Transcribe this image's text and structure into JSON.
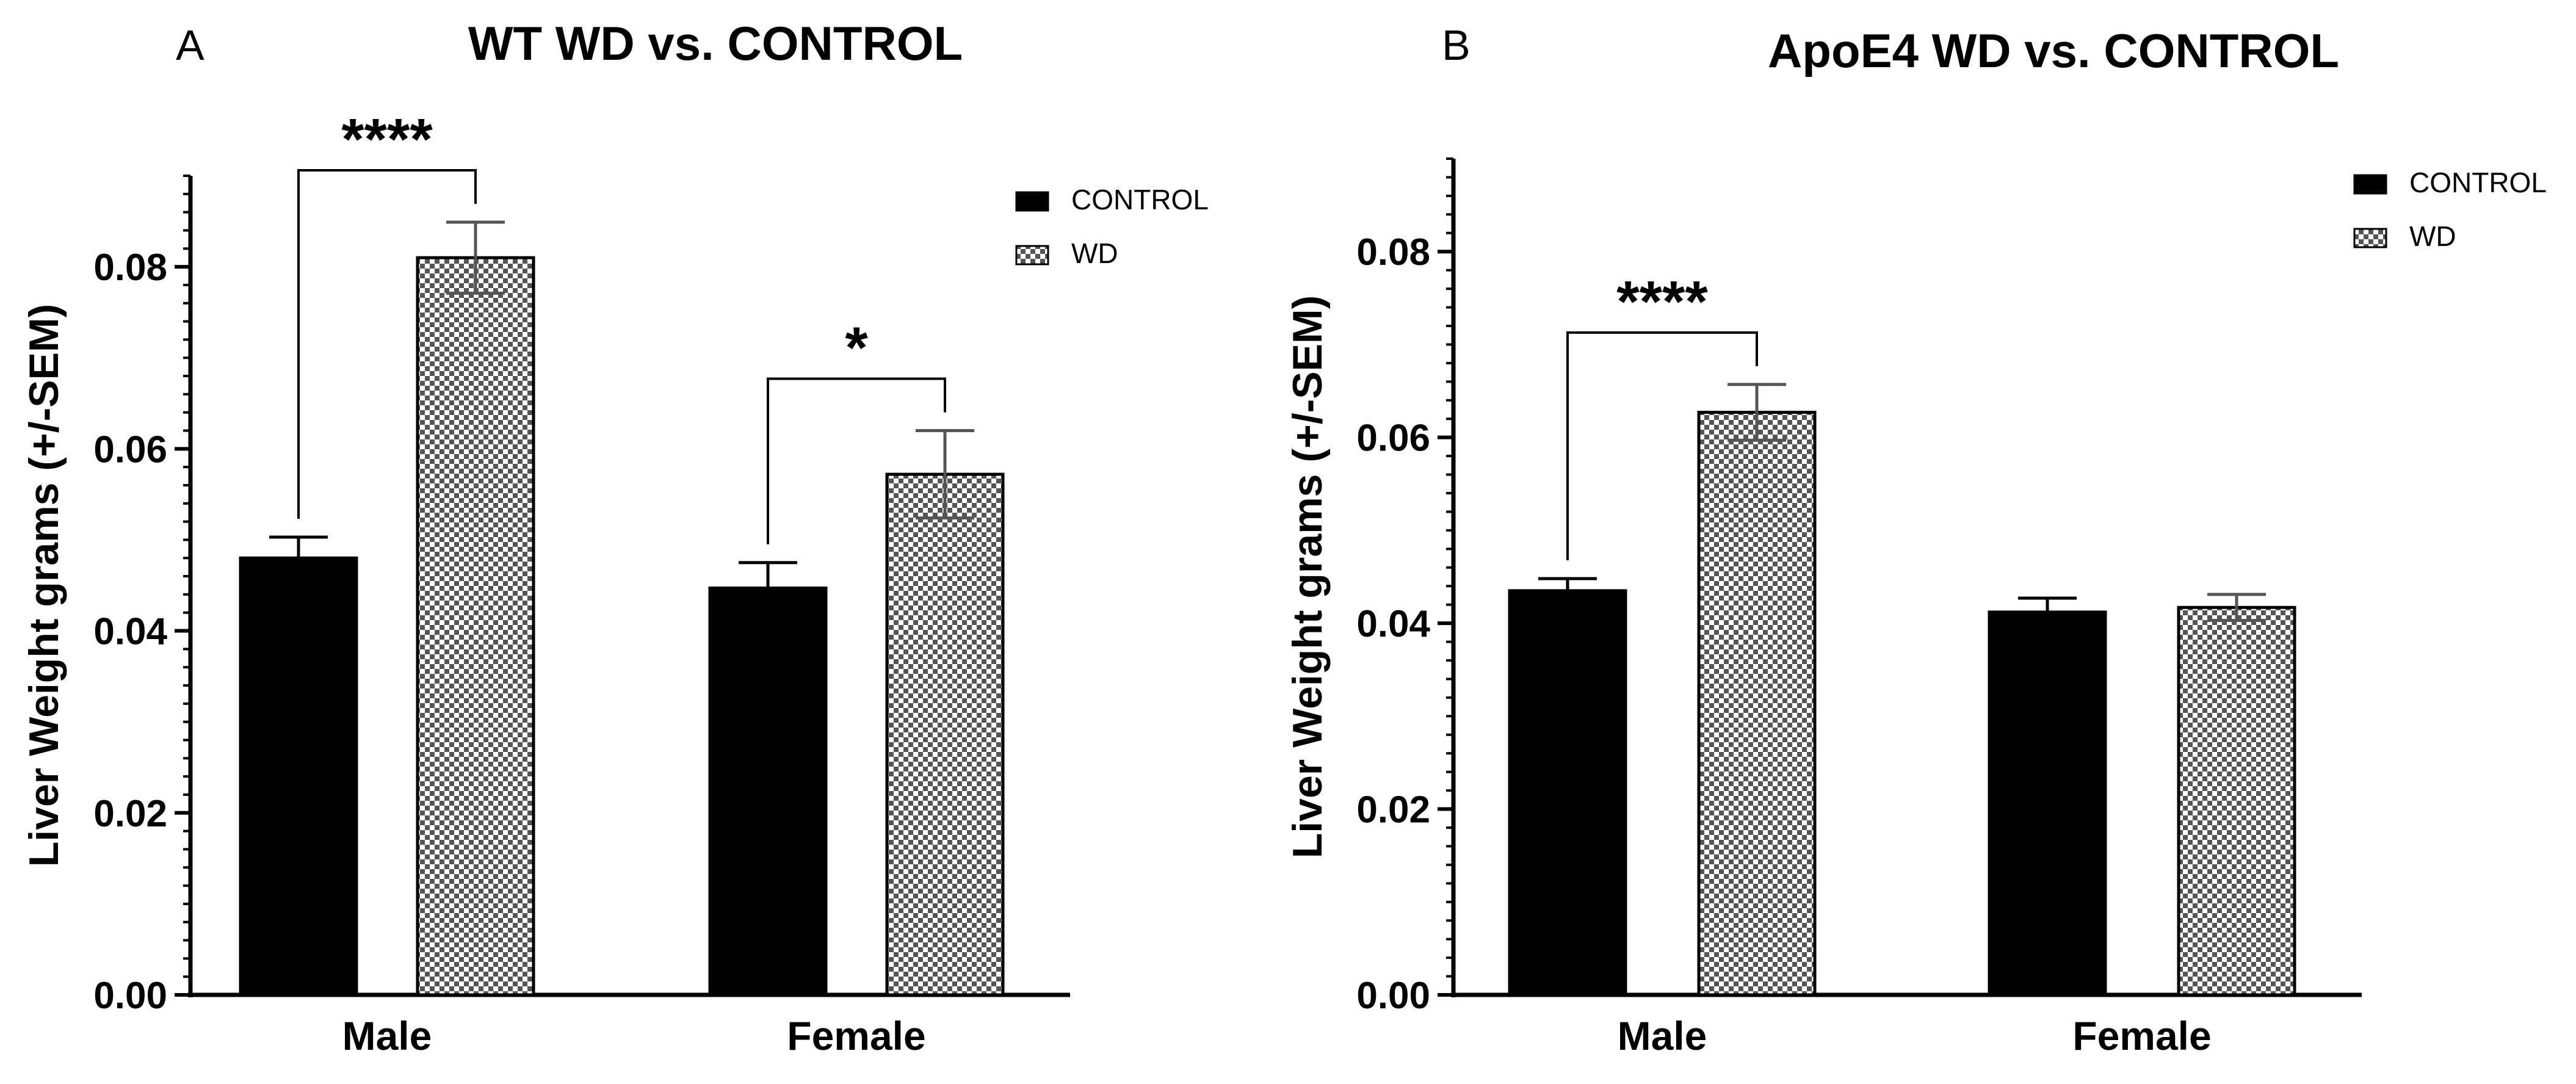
{
  "chart_data": [
    {
      "panel": "A",
      "type": "bar",
      "title": "WT WD vs. CONTROL",
      "ylabel": "Liver Weight grams (+/-SEM)",
      "xlabel": "",
      "categories": [
        "Male",
        "Female"
      ],
      "series": [
        {
          "name": "CONTROL",
          "values": [
            0.048,
            0.0447
          ],
          "errors": [
            0.0023,
            0.0028
          ],
          "color": "#000000",
          "pattern": "solid"
        },
        {
          "name": "WD",
          "values": [
            0.081,
            0.0572
          ],
          "errors": [
            0.0039,
            0.0048
          ],
          "color": "#777777",
          "pattern": "checker"
        }
      ],
      "ylim": [
        0,
        0.09
      ],
      "yticks": [
        "0.00",
        "0.02",
        "0.04",
        "0.06",
        "0.08"
      ],
      "ytick_values": [
        0,
        0.02,
        0.04,
        0.06,
        0.08
      ],
      "legend_position": "top-right",
      "significance": [
        {
          "category": "Male",
          "label": "****"
        },
        {
          "category": "Female",
          "label": "*"
        }
      ]
    },
    {
      "panel": "B",
      "type": "bar",
      "title": "ApoE4 WD vs. CONTROL",
      "ylabel": "Liver Weight grams (+/-SEM)",
      "xlabel": "",
      "categories": [
        "Male",
        "Female"
      ],
      "series": [
        {
          "name": "CONTROL",
          "values": [
            0.0435,
            0.0412
          ],
          "errors": [
            0.0013,
            0.0015
          ],
          "color": "#000000",
          "pattern": "solid"
        },
        {
          "name": "WD",
          "values": [
            0.0627,
            0.0417
          ],
          "errors": [
            0.003,
            0.0014
          ],
          "color": "#777777",
          "pattern": "checker"
        }
      ],
      "ylim": [
        0,
        0.09
      ],
      "yticks": [
        "0.00",
        "0.02",
        "0.04",
        "0.06",
        "0.08"
      ],
      "ytick_values": [
        0,
        0.02,
        0.04,
        0.06,
        0.08
      ],
      "legend_position": "top-right",
      "significance": [
        {
          "category": "Male",
          "label": "****"
        }
      ]
    }
  ]
}
